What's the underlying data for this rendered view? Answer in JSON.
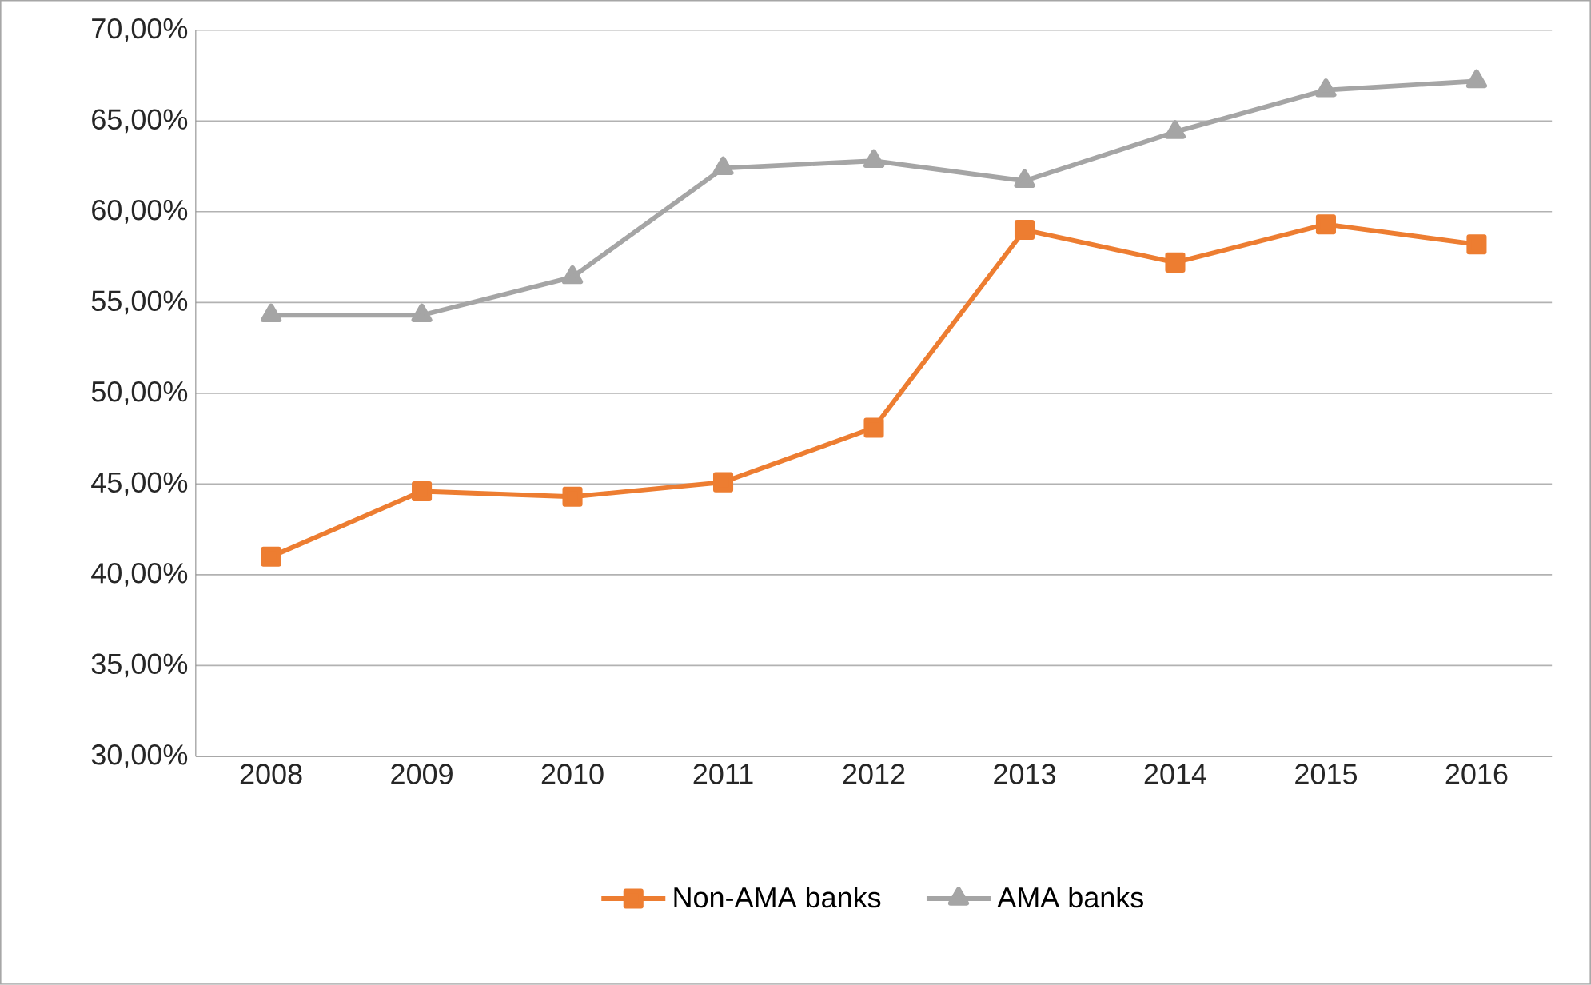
{
  "chart_data": {
    "type": "line",
    "categories": [
      "2008",
      "2009",
      "2010",
      "2011",
      "2012",
      "2013",
      "2014",
      "2015",
      "2016"
    ],
    "series": [
      {
        "name": "Non-AMA banks",
        "color": "#ed7d31",
        "marker": "square",
        "values": [
          41.0,
          44.6,
          44.3,
          45.1,
          48.1,
          59.0,
          57.2,
          59.3,
          58.2
        ]
      },
      {
        "name": "AMA banks",
        "color": "#a5a5a5",
        "marker": "triangle",
        "values": [
          54.3,
          54.3,
          56.4,
          62.4,
          62.8,
          61.7,
          64.4,
          66.7,
          67.2
        ]
      }
    ],
    "ylim": [
      30,
      70
    ],
    "yticks": [
      {
        "value": 30,
        "label": "30,00%"
      },
      {
        "value": 35,
        "label": "35,00%"
      },
      {
        "value": 40,
        "label": "40,00%"
      },
      {
        "value": 45,
        "label": "45,00%"
      },
      {
        "value": 50,
        "label": "50,00%"
      },
      {
        "value": 55,
        "label": "55,00%"
      },
      {
        "value": 60,
        "label": "60,00%"
      },
      {
        "value": 65,
        "label": "65,00%"
      },
      {
        "value": 70,
        "label": "70,00%"
      }
    ],
    "grid": "y",
    "legend": "bottom",
    "line_style": "solid"
  }
}
